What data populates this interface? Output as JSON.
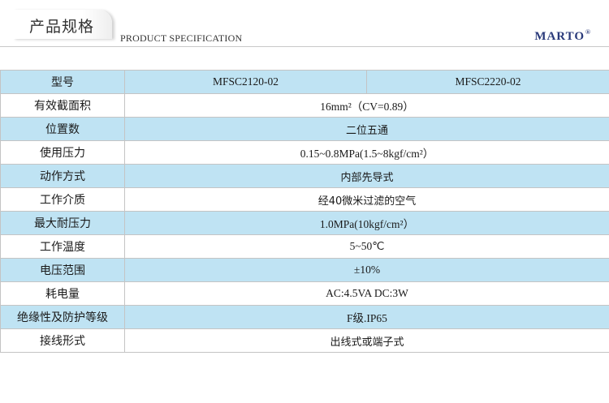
{
  "header": {
    "title_cn": "产品规格",
    "title_en": "PRODUCT SPECIFICATION",
    "brand": "MARTO",
    "brand_mark": "®"
  },
  "table": {
    "model_row": {
      "label": "型号",
      "models": [
        "MFSC2120-02",
        "MFSC2220-02"
      ]
    },
    "rows": [
      {
        "label": "有效截面积",
        "value": "16mm²（CV=0.89）"
      },
      {
        "label": "位置数",
        "value": "二位五通"
      },
      {
        "label": "使用压力",
        "value": "0.15~0.8MPa(1.5~8kgf/cm²）"
      },
      {
        "label": "动作方式",
        "value": "内部先导式"
      },
      {
        "label": "工作介质",
        "value": "经40微米过滤的空气"
      },
      {
        "label": "最大耐压力",
        "value": "1.0MPa(10kgf/cm²）"
      },
      {
        "label": "工作温度",
        "value": "5~50℃"
      },
      {
        "label": "电压范围",
        "value": "±10%"
      },
      {
        "label": "耗电量",
        "value": "AC:4.5VA  DC:3W"
      },
      {
        "label": "绝缘性及防护等级",
        "value": "F级.IP65"
      },
      {
        "label": "接线形式",
        "value": "出线式或端子式"
      }
    ]
  },
  "colors": {
    "shaded_row": "#bfe3f3",
    "brand": "#2a3a7a",
    "border": "#c4c4c4"
  }
}
